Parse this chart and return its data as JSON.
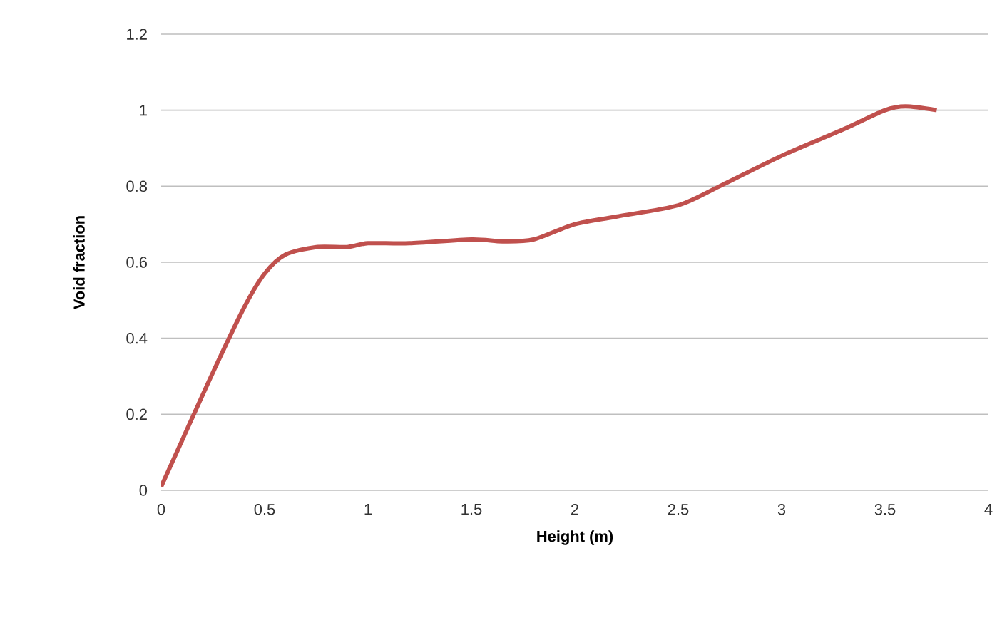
{
  "chart_data": {
    "type": "line",
    "xlabel": "Height (m)",
    "ylabel": "Void fraction",
    "x": [
      0,
      0.1,
      0.25,
      0.4,
      0.5,
      0.6,
      0.75,
      0.9,
      1.0,
      1.2,
      1.5,
      1.65,
      1.8,
      2.0,
      2.2,
      2.5,
      2.7,
      3.0,
      3.3,
      3.5,
      3.6,
      3.75
    ],
    "series": [
      {
        "color": "#c0504d",
        "values": [
          0.01,
          0.13,
          0.31,
          0.48,
          0.57,
          0.62,
          0.64,
          0.64,
          0.65,
          0.65,
          0.66,
          0.655,
          0.66,
          0.7,
          0.72,
          0.75,
          0.8,
          0.88,
          0.95,
          1.0,
          1.01,
          1.0
        ]
      }
    ],
    "xlim": [
      0,
      4
    ],
    "ylim": [
      0,
      1.2
    ],
    "xticks": [
      0,
      0.5,
      1,
      1.5,
      2,
      2.5,
      3,
      3.5,
      4
    ],
    "yticks": [
      0,
      0.2,
      0.4,
      0.6,
      0.8,
      1,
      1.2
    ],
    "grid": "y",
    "marker": "none",
    "line_style": "solid"
  }
}
